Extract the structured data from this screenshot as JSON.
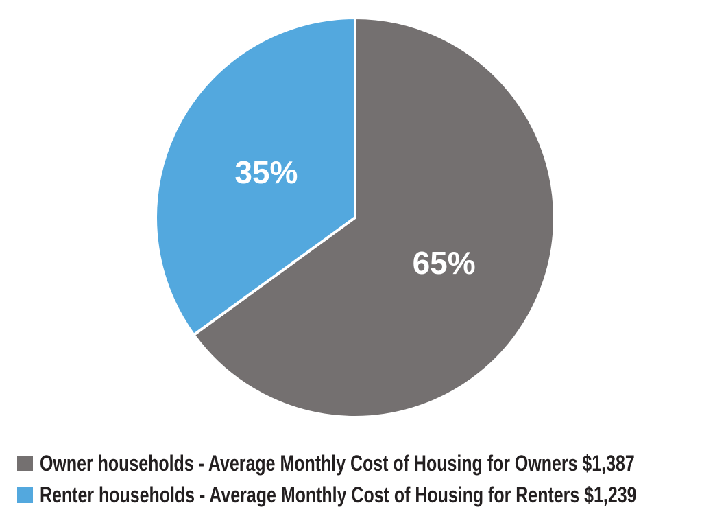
{
  "figure": {
    "background": "#ffffff"
  },
  "chart_data": {
    "type": "pie",
    "title": "",
    "slices": [
      {
        "id": "owner",
        "name": "Owner households",
        "value": 65,
        "pct_label": "65%",
        "color": "#747070",
        "avg_monthly_cost": "$1,387",
        "legend_label": "Owner households - Average Monthly Cost of Housing for Owners $1,387"
      },
      {
        "id": "renter",
        "name": "Renter households",
        "value": 35,
        "pct_label": "35%",
        "color": "#53A8DE",
        "avg_monthly_cost": "$1,239",
        "legend_label": "Renter households - Average Monthly Cost of Housing for Renters $1,239"
      }
    ],
    "start_angle_deg": -90,
    "direction": "clockwise",
    "slice_label_color": "#ffffff",
    "slice_divider_color": "#ffffff",
    "legend_position": "bottom-left",
    "legend_text_color": "#231f20"
  }
}
